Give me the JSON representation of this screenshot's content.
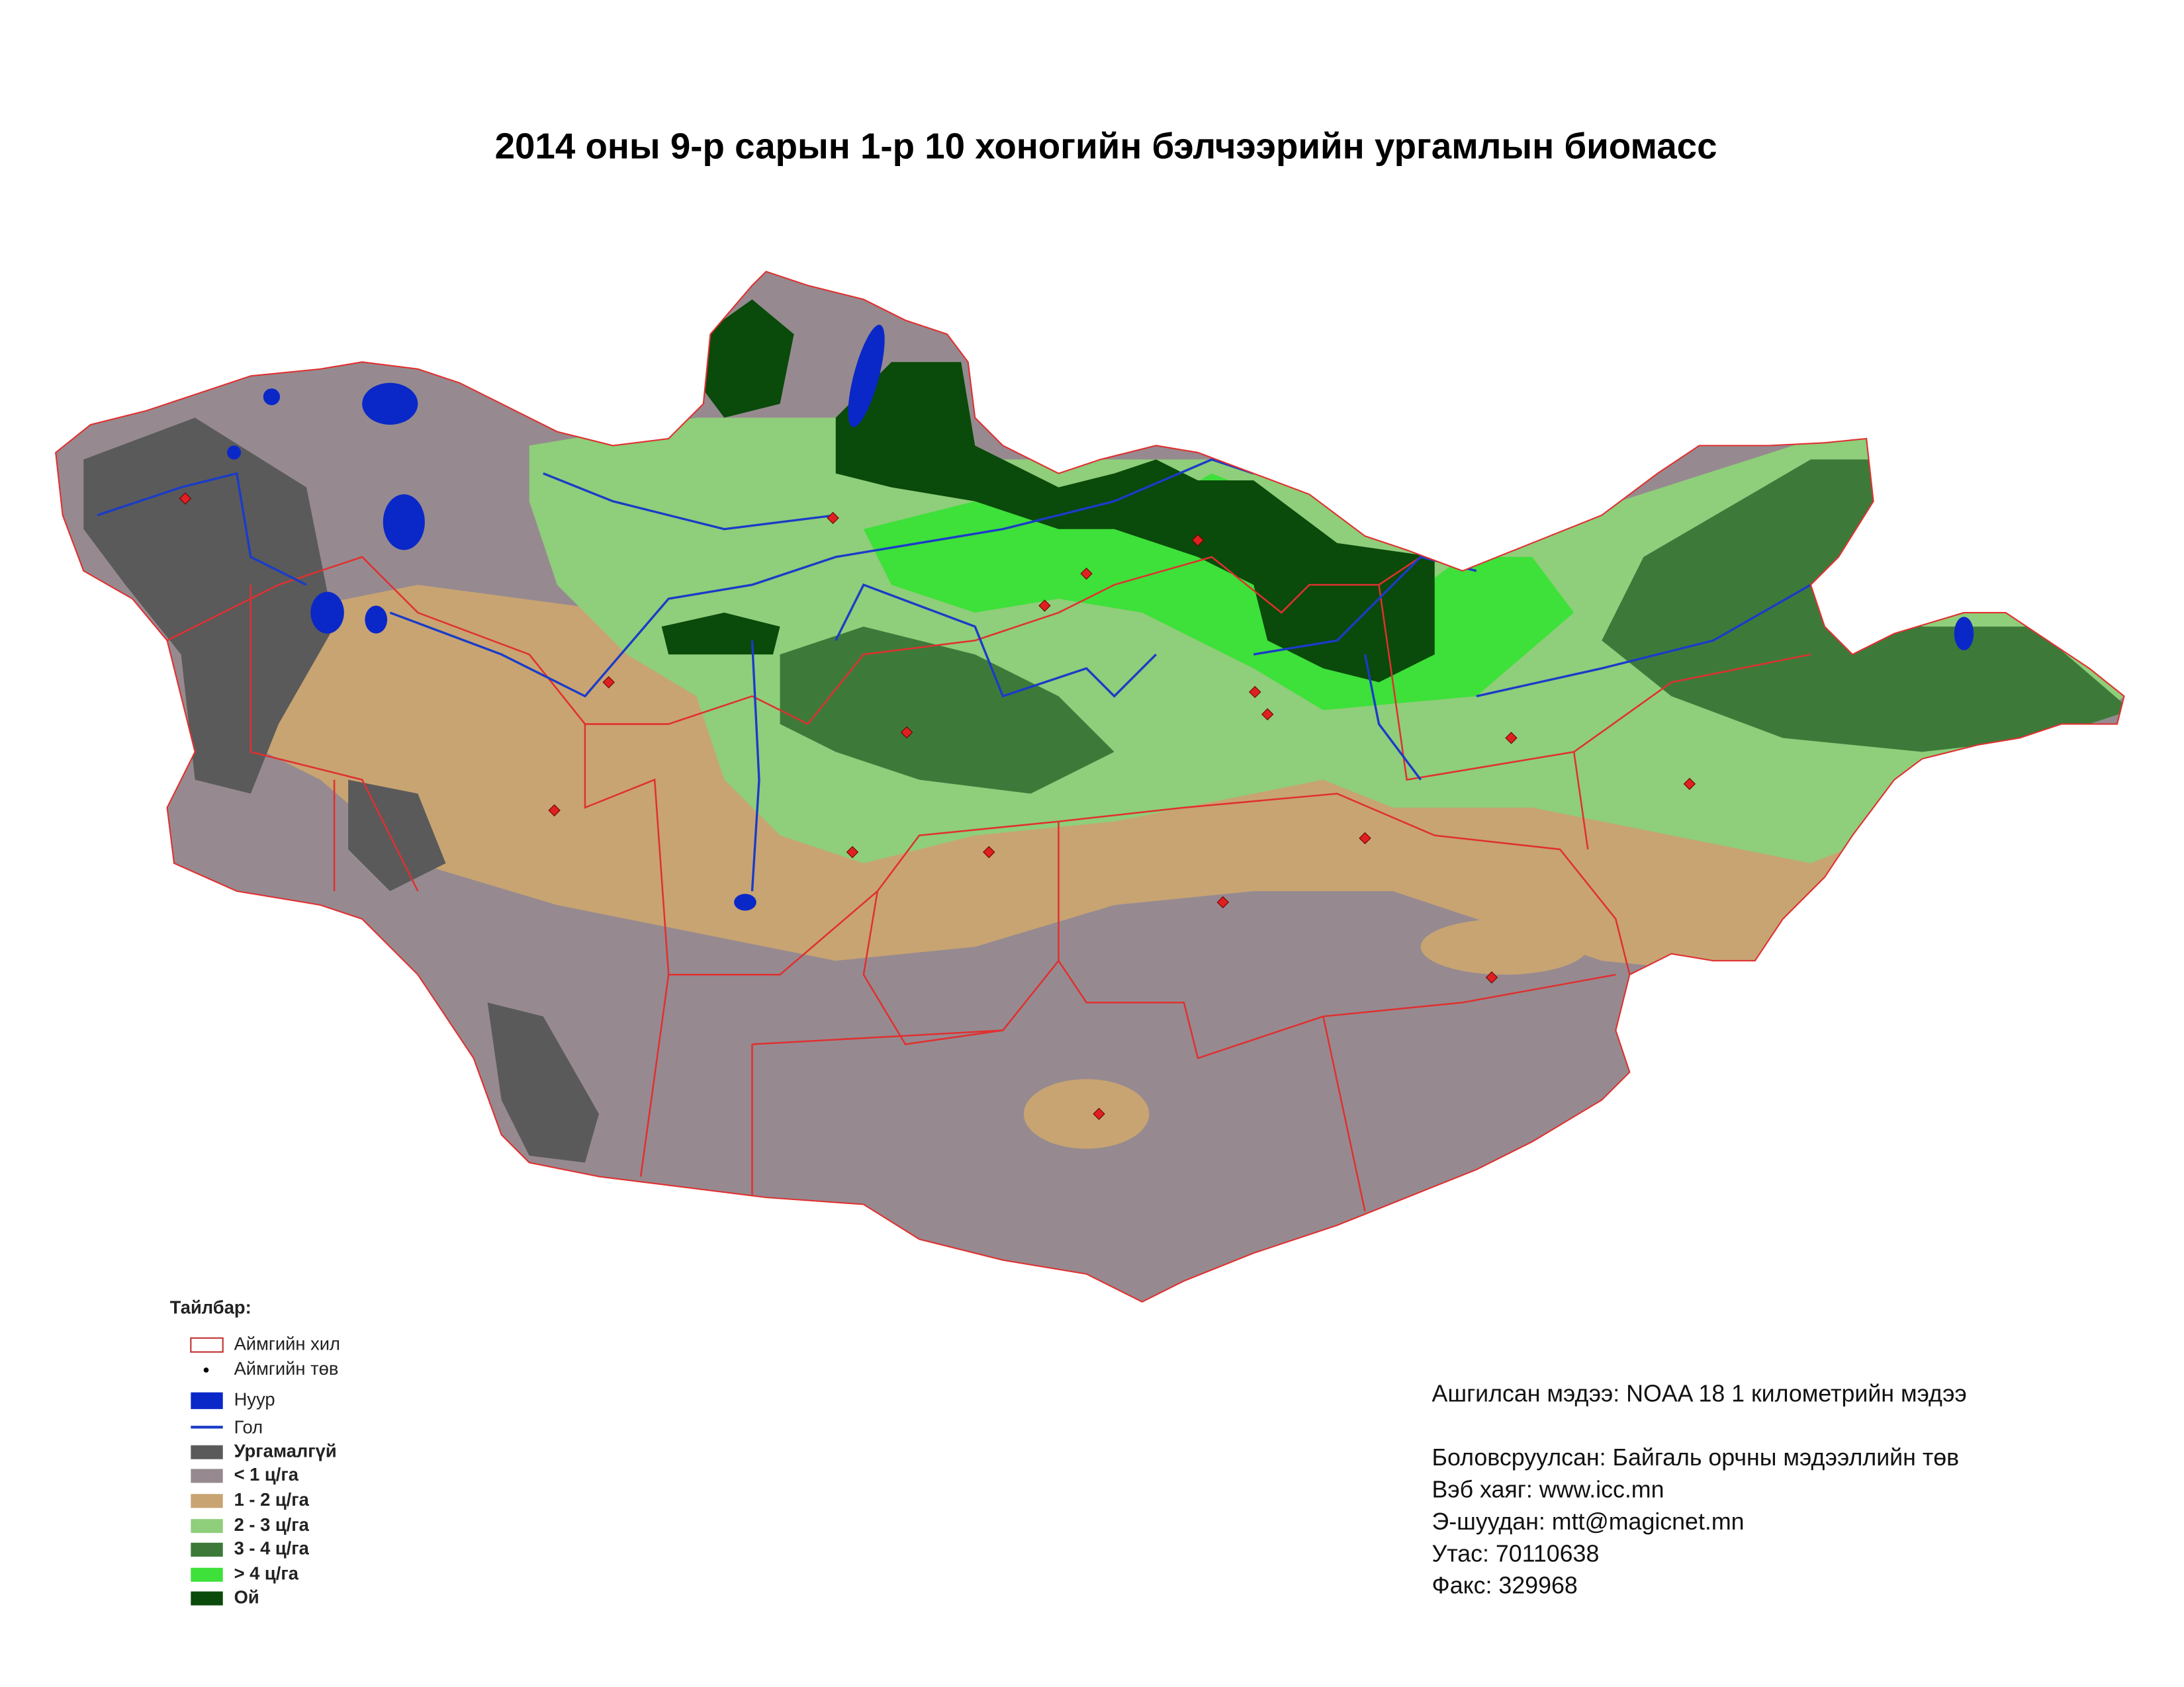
{
  "header": {
    "title": "2014 оны 9-р сарын 1-р 10 хоногийн бэлчээрийн ургамлын биомасс"
  },
  "legend": {
    "title": "Тайлбар:",
    "items": [
      "Аймгийн хил",
      "Аймгийн төв",
      "Нуур",
      "Гол",
      "Ургамалгүй",
      "< 1 ц/га",
      "1 - 2 ц/га",
      "2 - 3 ц/га",
      "3 - 4 ц/га",
      "> 4 ц/га",
      "Ой"
    ]
  },
  "info": {
    "lines": [
      "Ашгилсан мэдээ: NOAA 18 1 километрийн мэдээ",
      "Боловсруулсан: Байгаль орчны мэдээллийн төв",
      "Вэб хаяг: www.icc.mn",
      "Э-шуудан: mtt@magicnet.mn",
      "Утас: 70110638",
      "Факс: 329968"
    ]
  }
}
